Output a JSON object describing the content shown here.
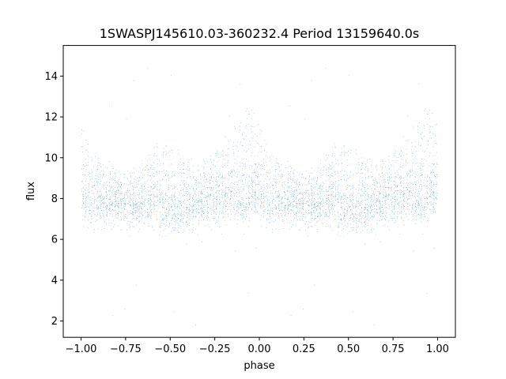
{
  "chart_data": {
    "type": "scatter",
    "title": "1SWASPJ145610.03-360232.4 Period 13159640.0s",
    "xlabel": "phase",
    "ylabel": "flux",
    "xlim": [
      -1.1,
      1.1
    ],
    "ylim": [
      1.2,
      15.5
    ],
    "xticks": [
      -1.0,
      -0.75,
      -0.5,
      -0.25,
      0.0,
      0.25,
      0.5,
      0.75,
      1.0
    ],
    "xtick_labels": [
      "−1.00",
      "−0.75",
      "−0.50",
      "−0.25",
      "0.00",
      "0.25",
      "0.50",
      "0.75",
      "1.00"
    ],
    "yticks": [
      2,
      4,
      6,
      8,
      10,
      12,
      14
    ],
    "ytick_labels": [
      "2",
      "4",
      "6",
      "8",
      "10",
      "12",
      "14"
    ],
    "grid": false,
    "point_color": "#1f77b4",
    "description_of_points": "Dense phase-folded light curve, mirrored over phase -1..1 (period 1). Flux mostly 6-11, brighter hump near phase -0.05 and 0.95 reaching ~12-13, faint scattered outliers down to ~2 and up to ~14.7.",
    "envelope": {
      "phase": [
        0.0,
        0.05,
        0.1,
        0.15,
        0.2,
        0.25,
        0.3,
        0.35,
        0.4,
        0.45,
        0.5,
        0.55,
        0.6,
        0.65,
        0.7,
        0.75,
        0.8,
        0.85,
        0.9,
        0.95,
        1.0
      ],
      "low": [
        7.0,
        6.5,
        6.8,
        6.7,
        6.8,
        6.6,
        6.6,
        6.7,
        6.8,
        6.3,
        6.2,
        6.3,
        6.4,
        6.6,
        6.8,
        6.8,
        6.9,
        7.2,
        6.5,
        7.0,
        7.0
      ],
      "high": [
        11.5,
        10.5,
        10.0,
        9.5,
        9.2,
        9.0,
        9.2,
        10.0,
        10.5,
        10.8,
        10.6,
        10.2,
        9.8,
        9.5,
        9.8,
        10.2,
        10.8,
        11.0,
        12.0,
        12.8,
        11.5
      ]
    }
  }
}
